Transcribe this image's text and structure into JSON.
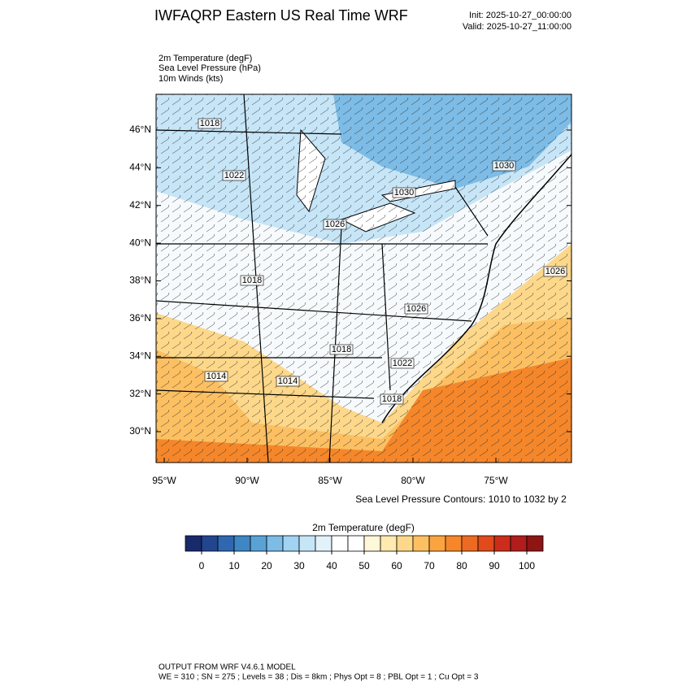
{
  "header": {
    "title": "IWFAQRP Eastern US Real Time WRF",
    "init": "Init: 2025-10-27_00:00:00",
    "valid": "Valid: 2025-10-27_11:00:00"
  },
  "fields": [
    "2m Temperature   (degF)",
    "Sea Level Pressure   (hPa)",
    "10m Winds   (kts)"
  ],
  "map": {
    "lat_ticks": [
      {
        "value": 46,
        "label": "46°N"
      },
      {
        "value": 44,
        "label": "44°N"
      },
      {
        "value": 42,
        "label": "42°N"
      },
      {
        "value": 40,
        "label": "40°N"
      },
      {
        "value": 38,
        "label": "38°N"
      },
      {
        "value": 36,
        "label": "36°N"
      },
      {
        "value": 34,
        "label": "34°N"
      },
      {
        "value": 32,
        "label": "32°N"
      },
      {
        "value": 30,
        "label": "30°N"
      }
    ],
    "lon_ticks": [
      {
        "value": -95,
        "label": "95°W"
      },
      {
        "value": -90,
        "label": "90°W"
      },
      {
        "value": -85,
        "label": "85°W"
      },
      {
        "value": -80,
        "label": "80°W"
      },
      {
        "value": -75,
        "label": "75°W"
      }
    ],
    "contour_labels": [
      1018,
      1022,
      1030,
      1030,
      1026,
      1026,
      1018,
      1026,
      1018,
      1022,
      1014,
      1014,
      1018
    ],
    "contour_note": "Sea Level Pressure Contours: 1010 to 1032 by 2"
  },
  "colorbar": {
    "title": "2m Temperature  (degF)",
    "ticks": [
      0,
      10,
      20,
      30,
      40,
      50,
      60,
      70,
      80,
      90,
      100
    ],
    "colors": [
      "#182a6a",
      "#23458f",
      "#2f67b1",
      "#3f86c4",
      "#5aa2d6",
      "#7cbce6",
      "#a1d3f2",
      "#c6e5f7",
      "#e3f2fa",
      "#ffffff",
      "#ffffff",
      "#fff7d9",
      "#ffeab0",
      "#fdd88a",
      "#fcc062",
      "#fba43f",
      "#f5872a",
      "#ed6a22",
      "#e04a1c",
      "#cc2c1b",
      "#b11c1c",
      "#8f1414"
    ]
  },
  "footer": [
    "OUTPUT FROM WRF V4.6.1 MODEL",
    "WE = 310 ; SN = 275 ; Levels = 38 ; Dis = 8km ; Phys Opt = 8 ; PBL Opt = 1 ; Cu Opt = 3"
  ]
}
